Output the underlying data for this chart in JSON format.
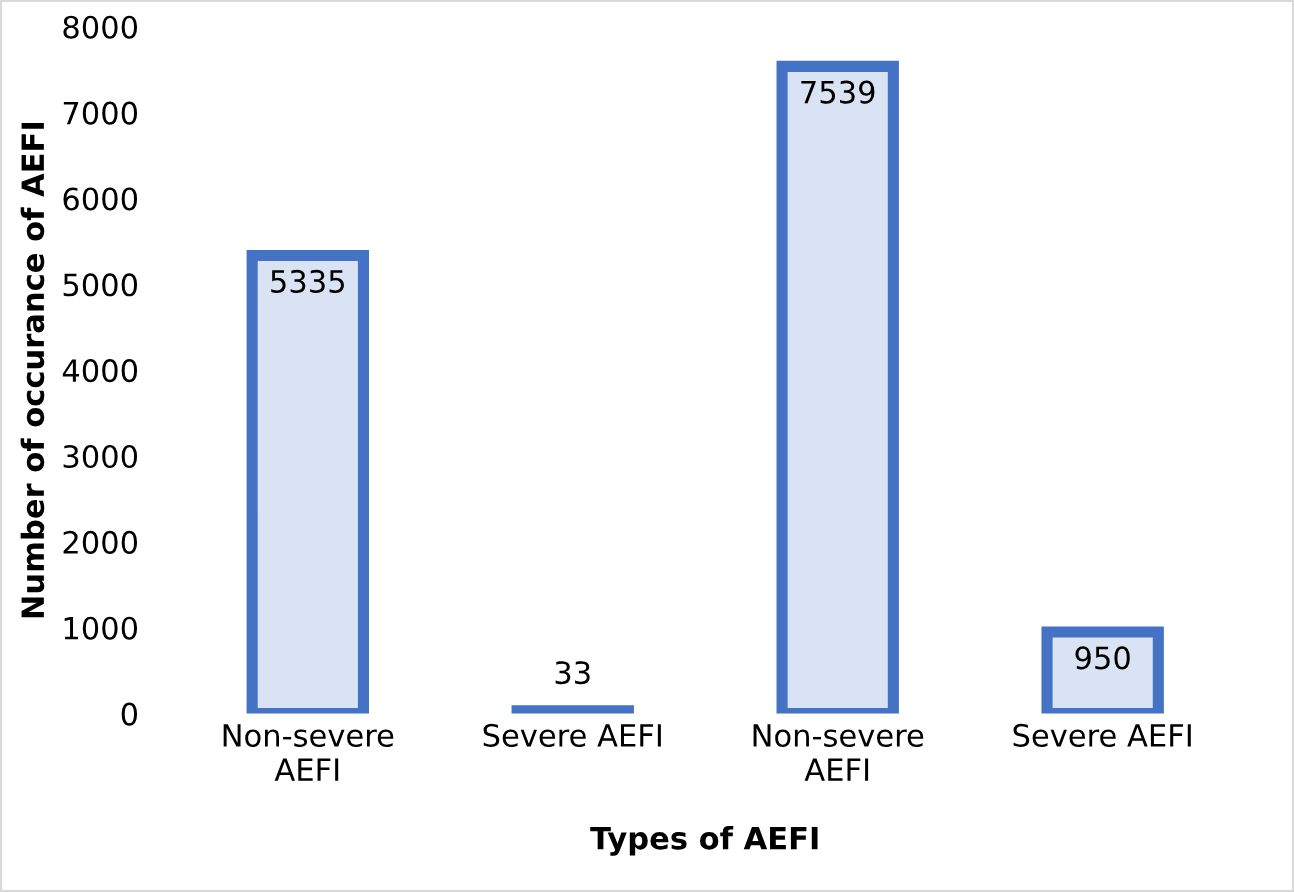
{
  "chart_data": {
    "type": "bar",
    "xlabel": "Types of AEFI",
    "ylabel": "Number of occurance of AEFI",
    "categories": [
      "Non-severe\nAEFI",
      "Severe AEFI",
      "Non-severe\nAEFI",
      "Severe AEFI"
    ],
    "series": [
      {
        "color": "#dae3f3",
        "values": [
          5335,
          33,
          7539,
          950
        ]
      }
    ],
    "ylim": [
      0,
      8000
    ],
    "yticks": [
      0,
      1000,
      2000,
      3000,
      4000,
      5000,
      6000,
      7000,
      8000
    ],
    "grid": false,
    "data_labels": true
  }
}
